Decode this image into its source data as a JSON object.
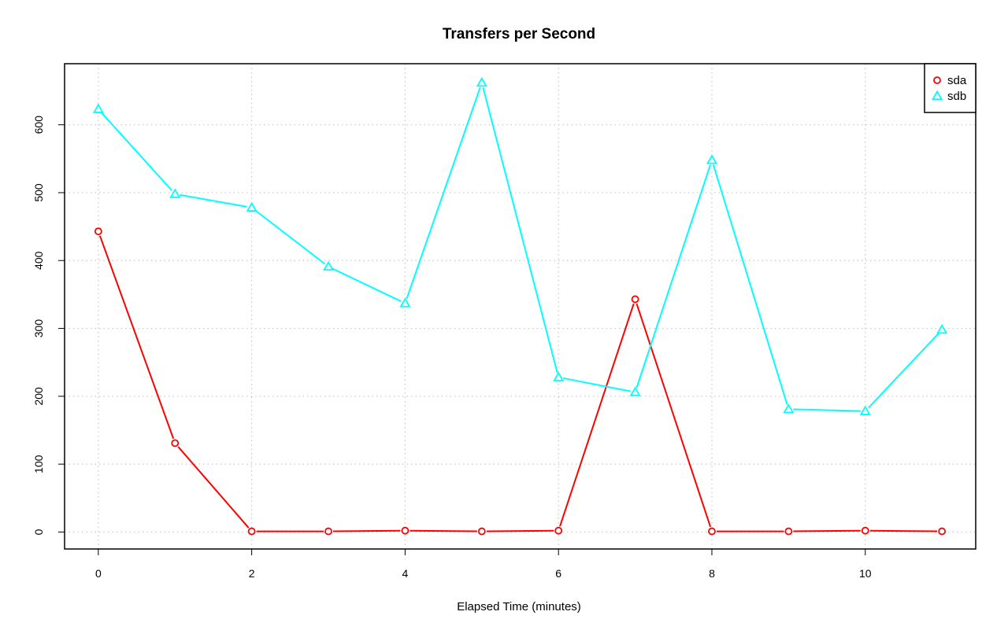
{
  "chart_data": {
    "type": "line",
    "title": "Transfers per Second",
    "xlabel": "Elapsed Time (minutes)",
    "ylabel": "",
    "x": [
      0,
      1,
      2,
      3,
      4,
      5,
      6,
      7,
      8,
      9,
      10,
      11
    ],
    "xlim": [
      -0.44,
      11.44
    ],
    "ylim": [
      -25,
      690
    ],
    "x_ticks": [
      0,
      2,
      4,
      6,
      8,
      10
    ],
    "y_ticks": [
      0,
      100,
      200,
      300,
      400,
      500,
      600
    ],
    "grid": true,
    "legend_position": "top-right",
    "series": [
      {
        "name": "sda",
        "color": "#ff0000",
        "marker": "circle",
        "values": [
          443,
          131,
          1,
          1,
          2,
          1,
          2,
          343,
          1,
          1,
          2,
          1
        ]
      },
      {
        "name": "sdb",
        "color": "#00ffff",
        "marker": "triangle",
        "values": [
          623,
          498,
          478,
          391,
          337,
          662,
          228,
          206,
          548,
          181,
          178,
          298
        ]
      }
    ]
  }
}
